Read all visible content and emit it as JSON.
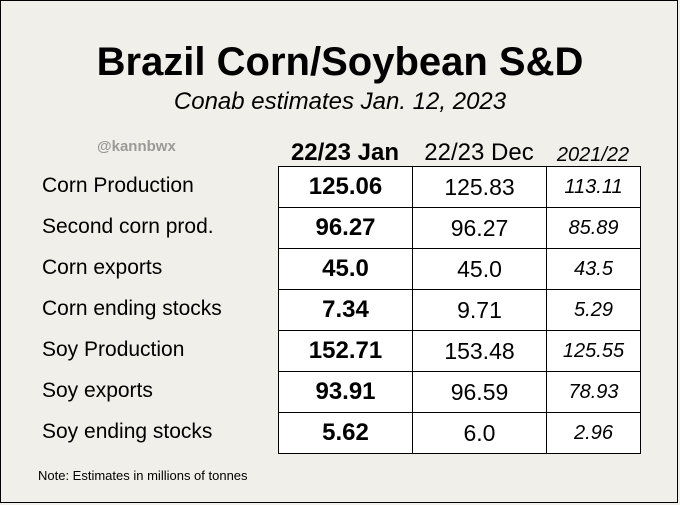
{
  "header": {
    "title": "Brazil Corn/Soybean S&D",
    "subtitle": "Conab estimates Jan. 12, 2023",
    "handle": "@kannbwx"
  },
  "footer": {
    "note": "Note: Estimates in millions of tonnes"
  },
  "chart_data": {
    "type": "table",
    "title": "Brazil Corn/Soybean S&D",
    "subtitle": "Conab estimates Jan. 12, 2023",
    "columns": [
      "22/23 Jan",
      "22/23 Dec",
      "2021/22"
    ],
    "rows": [
      {
        "label": "Corn Production",
        "values": [
          "125.06",
          "125.83",
          "113.11"
        ]
      },
      {
        "label": "Second corn prod.",
        "values": [
          "96.27",
          "96.27",
          "85.89"
        ]
      },
      {
        "label": "Corn exports",
        "values": [
          "45.0",
          "45.0",
          "43.5"
        ]
      },
      {
        "label": "Corn ending stocks",
        "values": [
          "7.34",
          "9.71",
          "5.29"
        ]
      },
      {
        "label": "Soy Production",
        "values": [
          "152.71",
          "153.48",
          "125.55"
        ]
      },
      {
        "label": "Soy exports",
        "values": [
          "93.91",
          "96.59",
          "78.93"
        ]
      },
      {
        "label": "Soy ending stocks",
        "values": [
          "5.62",
          "6.0",
          "2.96"
        ]
      }
    ],
    "note": "Note: Estimates in millions of tonnes"
  }
}
